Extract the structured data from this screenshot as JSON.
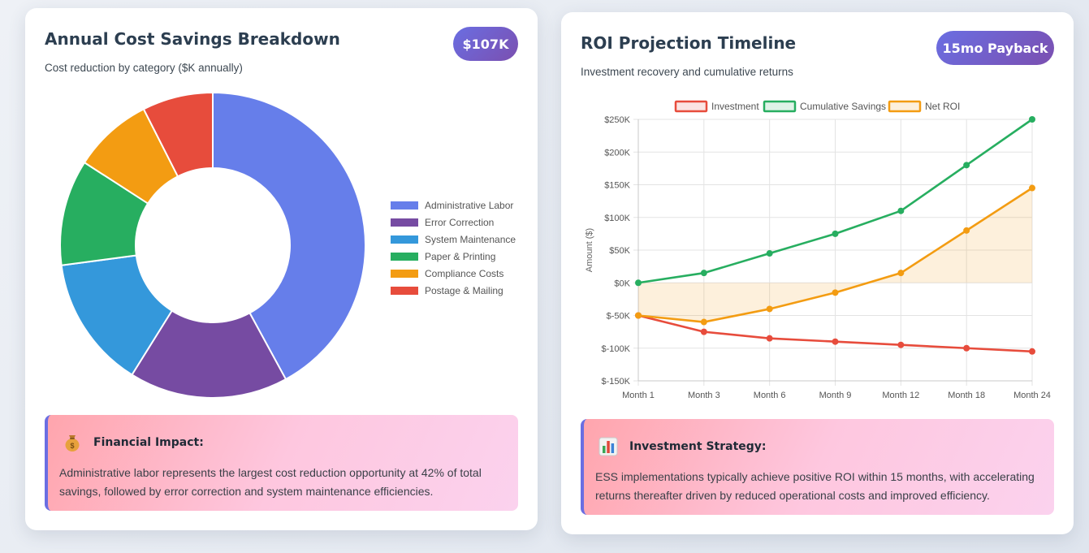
{
  "left_card": {
    "title": "Annual Cost Savings Breakdown",
    "subtitle": "Cost reduction by category ($K annually)",
    "badge": "$107K",
    "callout": {
      "icon": "money-bag-icon",
      "title": "Financial Impact:",
      "text": "Administrative labor represents the largest cost reduction opportunity at 42% of total savings, followed by error correction and system maintenance efficiencies."
    }
  },
  "right_card": {
    "title": "ROI Projection Timeline",
    "subtitle": "Investment recovery and cumulative returns",
    "badge": "15mo Payback",
    "callout": {
      "icon": "bar-chart-icon",
      "title": "Investment Strategy:",
      "text": "ESS implementations typically achieve positive ROI within 15 months, with accelerating returns thereafter driven by reduced operational costs and improved efficiency."
    }
  },
  "chart_data": [
    {
      "type": "doughnut",
      "title": "Annual Cost Savings Breakdown",
      "unit": "$K annually",
      "categories": [
        "Administrative Labor",
        "Error Correction",
        "System Maintenance",
        "Paper & Printing",
        "Compliance Costs",
        "Postage & Mailing"
      ],
      "values": [
        45,
        18,
        15,
        12,
        9,
        8
      ],
      "colors": [
        "#667eea",
        "#764ba2",
        "#3498db",
        "#27ae60",
        "#f39c12",
        "#e74c3c"
      ],
      "legend_position": "right"
    },
    {
      "type": "line",
      "title": "ROI Projection Timeline",
      "categories": [
        "Month 1",
        "Month 3",
        "Month 6",
        "Month 9",
        "Month 12",
        "Month 18",
        "Month 24"
      ],
      "series": [
        {
          "name": "Investment",
          "color": "#e74c3c",
          "fill": false,
          "values": [
            -50000,
            -75000,
            -85000,
            -90000,
            -95000,
            -100000,
            -105000
          ]
        },
        {
          "name": "Cumulative Savings",
          "color": "#27ae60",
          "fill": false,
          "values": [
            0,
            15000,
            45000,
            75000,
            110000,
            180000,
            250000
          ]
        },
        {
          "name": "Net ROI",
          "color": "#f39c12",
          "fill": true,
          "values": [
            -50000,
            -60000,
            -40000,
            -15000,
            15000,
            80000,
            145000
          ]
        }
      ],
      "ylabel": "Amount ($)",
      "ylim": [
        -150000,
        250000
      ],
      "yticks": [
        250000,
        200000,
        150000,
        100000,
        50000,
        0,
        -50000,
        -100000,
        -150000
      ],
      "ytick_labels": [
        "$250K",
        "$200K",
        "$150K",
        "$100K",
        "$50K",
        "$0K",
        "$-50K",
        "$-100K",
        "$-150K"
      ],
      "legend_position": "top",
      "grid": true
    }
  ]
}
